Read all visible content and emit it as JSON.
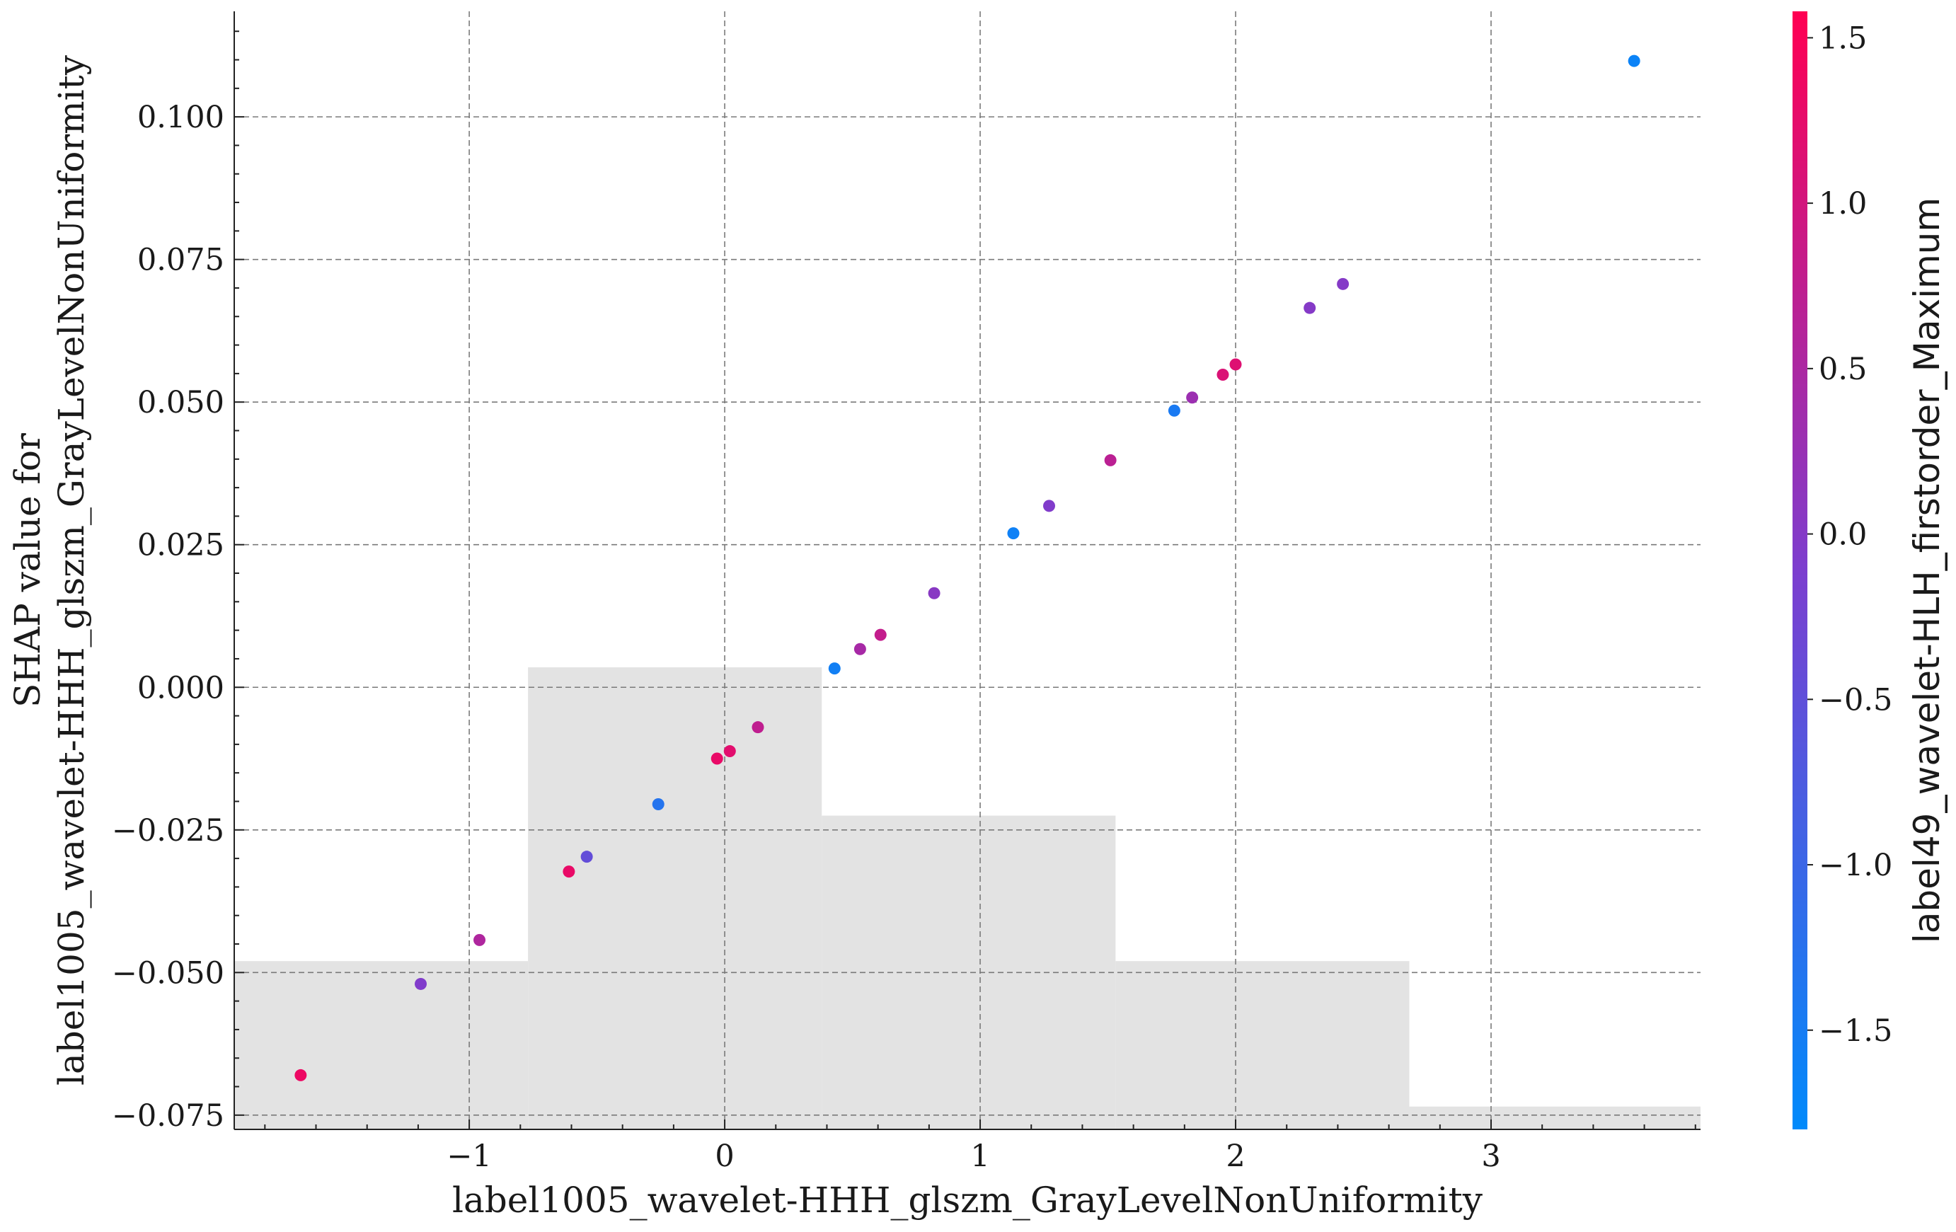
{
  "chart_data": {
    "type": "scatter",
    "xlabel": "label1005_wavelet-HHH_glszm_GrayLevelNonUniformity",
    "ylabel_line1": "SHAP value for",
    "ylabel_line2": "label1005_wavelet-HHH_glszm_GrayLevelNonUniformity",
    "colorbar_label": "label49_wavelet-HLH_firstorder_Maximum",
    "xlim": [
      -1.92,
      3.82
    ],
    "ylim": [
      -0.0775,
      0.1185
    ],
    "x_ticks": [
      -1,
      0,
      1,
      2,
      3
    ],
    "x_tick_labels": [
      "−1",
      "0",
      "1",
      "2",
      "3"
    ],
    "y_ticks": [
      -0.075,
      -0.05,
      -0.025,
      0.0,
      0.025,
      0.05,
      0.075,
      0.1
    ],
    "y_tick_labels": [
      "−0.075",
      "−0.050",
      "−0.025",
      "0.000",
      "0.025",
      "0.050",
      "0.075",
      "0.100"
    ],
    "grid": true,
    "colorbar": {
      "range": [
        -1.8,
        1.58
      ],
      "ticks": [
        -1.5,
        -1.0,
        -0.5,
        0.0,
        0.5,
        1.0,
        1.5
      ],
      "tick_labels": [
        "−1.5",
        "−1.0",
        "−0.5",
        "0.0",
        "0.5",
        "1.0",
        "1.5"
      ],
      "colors": [
        "#008afb",
        "#7c3ecf",
        "#ff0052"
      ]
    },
    "histogram": [
      {
        "x0": -1.92,
        "x1": -0.77,
        "height": 0.0295
      },
      {
        "x0": -0.77,
        "x1": 0.38,
        "height": 0.081
      },
      {
        "x0": 0.38,
        "x1": 1.53,
        "height": 0.055
      },
      {
        "x0": 1.53,
        "x1": 2.68,
        "height": 0.0295
      },
      {
        "x0": 2.68,
        "x1": 3.82,
        "height": 0.004
      }
    ],
    "points": [
      {
        "x": -1.66,
        "y": -0.068,
        "c": 1.35
      },
      {
        "x": -1.19,
        "y": -0.052,
        "c": -0.05
      },
      {
        "x": -0.96,
        "y": -0.0443,
        "c": 0.55
      },
      {
        "x": -0.61,
        "y": -0.0323,
        "c": 1.3
      },
      {
        "x": -0.54,
        "y": -0.0297,
        "c": -0.45
      },
      {
        "x": -0.26,
        "y": -0.0205,
        "c": -1.3
      },
      {
        "x": -0.03,
        "y": -0.0125,
        "c": 1.3
      },
      {
        "x": 0.02,
        "y": -0.0112,
        "c": 1.2
      },
      {
        "x": 0.13,
        "y": -0.007,
        "c": 0.75
      },
      {
        "x": 0.43,
        "y": 0.0033,
        "c": -1.55
      },
      {
        "x": 0.53,
        "y": 0.0067,
        "c": 0.45
      },
      {
        "x": 0.61,
        "y": 0.0092,
        "c": 0.8
      },
      {
        "x": 0.82,
        "y": 0.0165,
        "c": 0.05
      },
      {
        "x": 1.13,
        "y": 0.027,
        "c": -1.6
      },
      {
        "x": 1.27,
        "y": 0.0318,
        "c": -0.05
      },
      {
        "x": 1.51,
        "y": 0.0398,
        "c": 0.7
      },
      {
        "x": 1.76,
        "y": 0.0485,
        "c": -1.45
      },
      {
        "x": 1.83,
        "y": 0.0508,
        "c": 0.3
      },
      {
        "x": 1.95,
        "y": 0.0548,
        "c": 1.1
      },
      {
        "x": 2.0,
        "y": 0.0566,
        "c": 1.15
      },
      {
        "x": 2.29,
        "y": 0.0665,
        "c": 0.0
      },
      {
        "x": 2.42,
        "y": 0.0707,
        "c": 0.0
      },
      {
        "x": 3.56,
        "y": 0.1098,
        "c": -1.65
      }
    ]
  }
}
